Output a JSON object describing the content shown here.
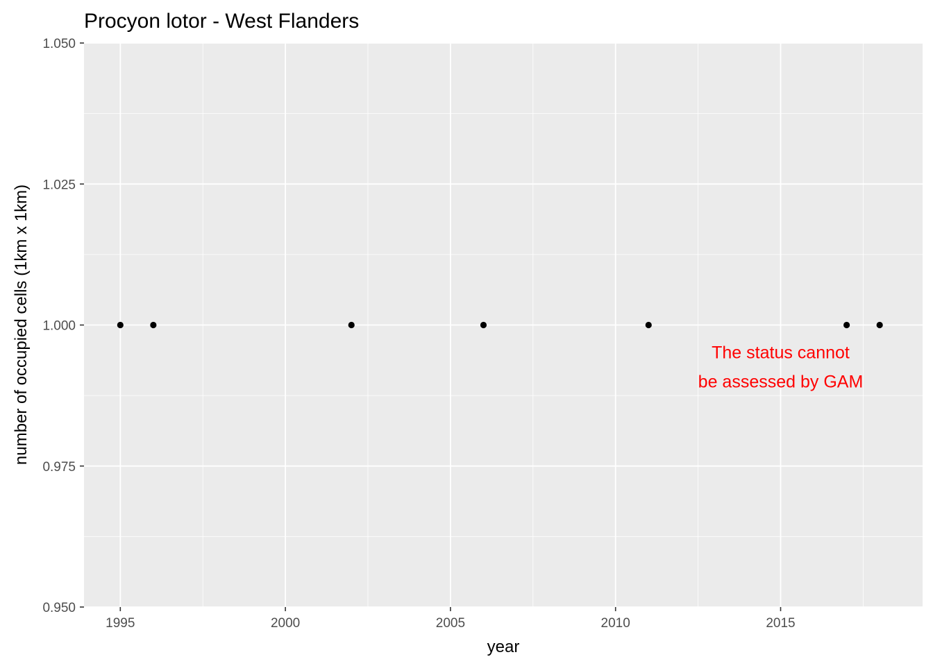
{
  "chart_data": {
    "type": "scatter",
    "title": "Procyon lotor - West Flanders",
    "xlabel": "year",
    "ylabel": "number of occupied cells (1km x 1km)",
    "xlim": [
      1993.9,
      2019.3
    ],
    "ylim": [
      0.95,
      1.05
    ],
    "xticks": [
      1995,
      2000,
      2005,
      2010,
      2015
    ],
    "xtick_labels": [
      "1995",
      "2000",
      "2005",
      "2010",
      "2015"
    ],
    "yticks": [
      0.95,
      0.975,
      1.0,
      1.025,
      1.05
    ],
    "ytick_labels": [
      "0.950",
      "0.975",
      "1.000",
      "1.025",
      "1.050"
    ],
    "grid": true,
    "background": "#ebebeb",
    "point_color": "#000000",
    "x": [
      1995,
      1996,
      2002,
      2006,
      2011,
      2017,
      2018
    ],
    "y": [
      1,
      1,
      1,
      1,
      1,
      1,
      1
    ],
    "annotation": {
      "lines": [
        "The status cannot",
        "be assessed by GAM"
      ],
      "color": "#ff0000",
      "x": 2015,
      "y": 0.9925
    }
  }
}
